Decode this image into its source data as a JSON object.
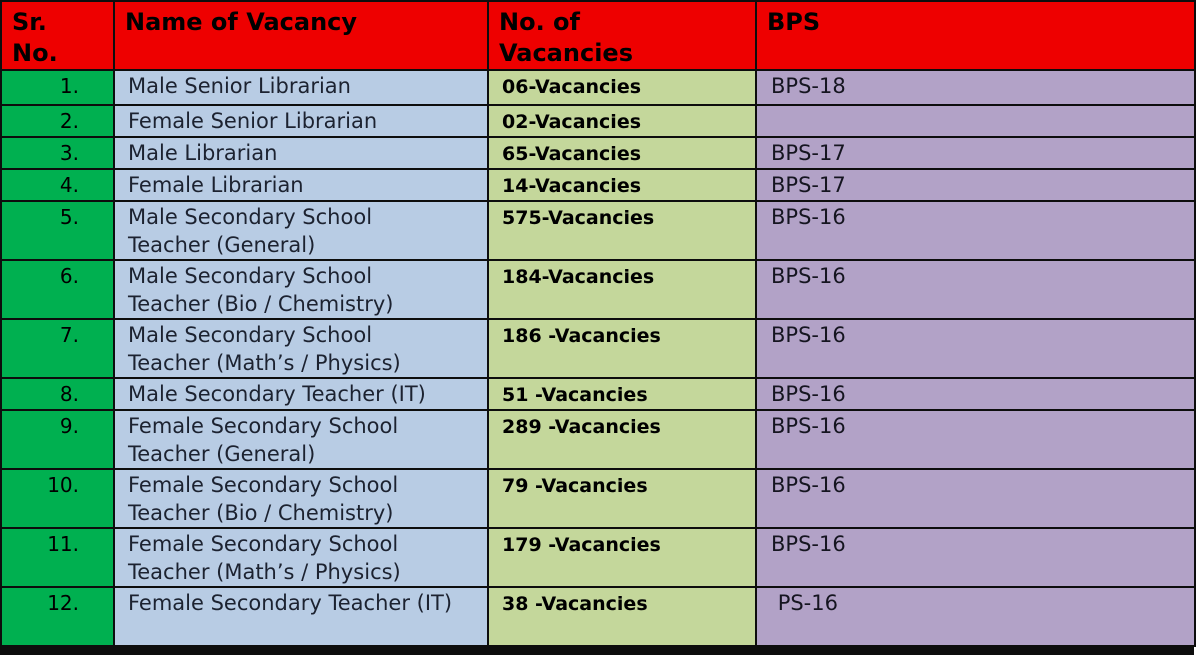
{
  "colors": {
    "header_bg": "#ee0000",
    "header_text": "#000000",
    "sr_col_bg": "#00b050",
    "name_col_bg": "#b8cce4",
    "vacancies_col_bg": "#c4d79b",
    "bps_col_bg": "#b2a2c7",
    "body_text": "#1c2230",
    "border": "#0d0d0d"
  },
  "table": {
    "headers": {
      "sr_no": "Sr. No.",
      "name": "Name of Vacancy",
      "vacancies": "No. of Vacancies",
      "bps": "BPS"
    },
    "rows": [
      {
        "sr_no": "1.",
        "name": "Male Senior Librarian",
        "vacancies": "06-Vacancies",
        "bps": "BPS-18"
      },
      {
        "sr_no": "2.",
        "name": "Female Senior Librarian",
        "vacancies": "02-Vacancies",
        "bps": ""
      },
      {
        "sr_no": "3.",
        "name": "Male Librarian",
        "vacancies": "65-Vacancies",
        "bps": "BPS-17"
      },
      {
        "sr_no": "4.",
        "name": "Female Librarian",
        "vacancies": "14-Vacancies",
        "bps": "BPS-17"
      },
      {
        "sr_no": "5.",
        "name": "Male Secondary School Teacher (General)",
        "vacancies": "575-Vacancies",
        "bps": "BPS-16"
      },
      {
        "sr_no": "6.",
        "name": "Male Secondary School Teacher (Bio / Chemistry)",
        "vacancies": "184-Vacancies",
        "bps": "BPS-16"
      },
      {
        "sr_no": "7.",
        "name": "Male Secondary School Teacher (Math’s / Physics)",
        "vacancies": "186 -Vacancies",
        "bps": "BPS-16"
      },
      {
        "sr_no": "8.",
        "name": "Male Secondary Teacher (IT)",
        "vacancies": "51 -Vacancies",
        "bps": "BPS-16"
      },
      {
        "sr_no": "9.",
        "name": "Female Secondary School Teacher (General)",
        "vacancies": "289 -Vacancies",
        "bps": "BPS-16"
      },
      {
        "sr_no": "10.",
        "name": "Female Secondary School Teacher (Bio / Chemistry)",
        "vacancies": "79 -Vacancies",
        "bps": "BPS-16"
      },
      {
        "sr_no": "11.",
        "name": "Female Secondary School Teacher (Math’s / Physics)",
        "vacancies": "179 -Vacancies",
        "bps": "BPS-16"
      },
      {
        "sr_no": "12.",
        "name": "Female Secondary Teacher (IT)",
        "vacancies": "38 -Vacancies",
        "bps": " PS-16"
      }
    ]
  }
}
